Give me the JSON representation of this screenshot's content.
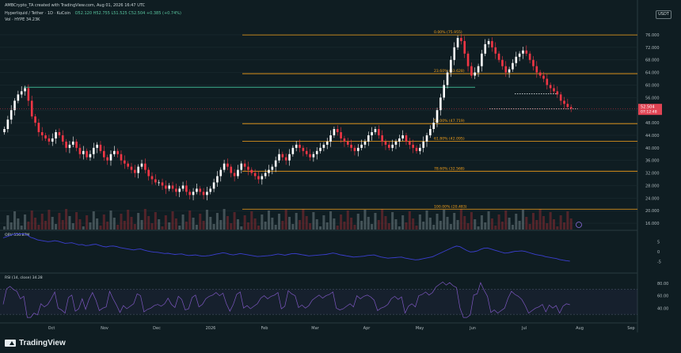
{
  "header": {
    "credit": "AMBCrypto_TA created with TradingView.com, Aug 01, 2026 16:47 UTC",
    "symbol": "Hyperliquid / Tether · 1D · KuCoin",
    "ohlc": "O52.120  H52.755  L51.525  C52.504  +0.385 (+0.74%)",
    "vol": "Vol · HYPE  34.23K"
  },
  "quote_badge": "USDT",
  "price_label": {
    "value": "52.504",
    "timer": "07:12:48"
  },
  "brand": "TradingView",
  "colors": {
    "up": "#ffffff",
    "down": "#f23645",
    "fib": "#f7a21b",
    "green_line": "#3fb28e",
    "obv": "#3b3fd1",
    "rsi": "#7e57c2",
    "bg": "#0f1d22"
  },
  "chart_data": [
    {
      "type": "candlestick",
      "ylim": [
        14,
        78
      ],
      "y_ticks": [
        "76.000",
        "72.000",
        "68.000",
        "64.000",
        "60.000",
        "56.000",
        "52.000",
        "48.000",
        "44.000",
        "40.000",
        "36.000",
        "32.000",
        "28.000",
        "24.000",
        "20.000",
        "16.000"
      ],
      "x_ticks": [
        "Oct",
        "Nov",
        "Dec",
        "2026",
        "Feb",
        "Mar",
        "Apr",
        "May",
        "Jun",
        "Jul",
        "Aug",
        "Sep"
      ],
      "fib_levels": [
        {
          "label": "0.00% (75.955)",
          "value": 75.955
        },
        {
          "label": "23.60% (63.628)",
          "value": 63.628
        },
        {
          "label": "50.00% (47.719)",
          "value": 47.719
        },
        {
          "label": "61.80% (42.095)",
          "value": 42.095
        },
        {
          "label": "78.60% (32.568)",
          "value": 32.568
        },
        {
          "label": "100.00% (20.483)",
          "value": 20.483
        }
      ],
      "resistance_level": 59.3,
      "support_dotted": [
        57.2,
        52.4
      ],
      "close_series": [
        46,
        49,
        52,
        55,
        57,
        58,
        59,
        55,
        50,
        48,
        45,
        44,
        43,
        42,
        43,
        45,
        44,
        42,
        40,
        41,
        42,
        40,
        38,
        39,
        37,
        38,
        40,
        41,
        39,
        37,
        36,
        38,
        39,
        38,
        36,
        35,
        34,
        33,
        32,
        34,
        35,
        33,
        31,
        30,
        29,
        29,
        28,
        27,
        28,
        27,
        26,
        27,
        28,
        26,
        25,
        26,
        27,
        26,
        25,
        26,
        27,
        29,
        31,
        33,
        35,
        34,
        32,
        31,
        33,
        35,
        34,
        33,
        32,
        31,
        30,
        31,
        32,
        33,
        34,
        36,
        38,
        37,
        36,
        38,
        40,
        41,
        40,
        39,
        38,
        37,
        38,
        39,
        40,
        41,
        42,
        44,
        46,
        45,
        43,
        42,
        41,
        40,
        39,
        40,
        41,
        42,
        44,
        45,
        46,
        44,
        42,
        41,
        40,
        41,
        42,
        43,
        44,
        42,
        41,
        40,
        39,
        40,
        42,
        44,
        46,
        48,
        52,
        56,
        60,
        64,
        68,
        72,
        75,
        74,
        70,
        66,
        63,
        64,
        66,
        70,
        73,
        74,
        72,
        70,
        68,
        66,
        64,
        65,
        67,
        69,
        70,
        71,
        70,
        68,
        66,
        64,
        63,
        62,
        60,
        59,
        58,
        57,
        55,
        54,
        53,
        52.5
      ]
    },
    {
      "type": "line",
      "name": "OBV",
      "label": "OBV  556.87M",
      "ylim": [
        -10,
        10
      ],
      "y_ticks": [
        "5",
        "0",
        "-5"
      ]
    },
    {
      "type": "line",
      "name": "RSI (14, close)",
      "label": "RSI (14, close)  34.28",
      "ylim": [
        20,
        90
      ],
      "y_ticks": [
        "80.00",
        "60.00",
        "40.00"
      ]
    }
  ]
}
